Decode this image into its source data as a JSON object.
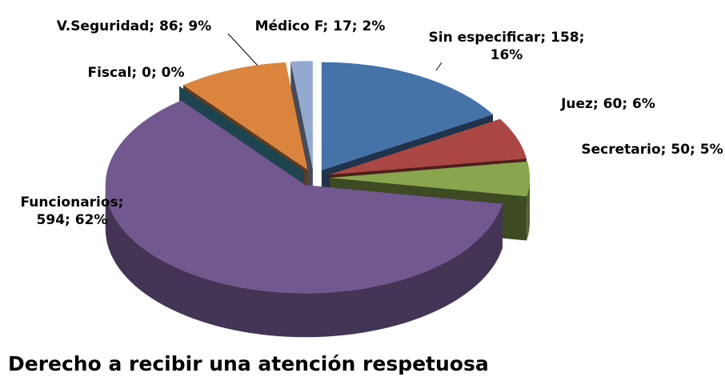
{
  "chart_data": {
    "type": "pie3d",
    "title": "Derecho a recibir una atención respetuosa",
    "values": [
      158,
      60,
      50,
      594,
      0,
      86,
      17
    ],
    "value_labels": [
      "Sin especificar; 158; 16%",
      "Juez; 60; 6%",
      "Secretario; 50; 5%",
      "Funcionarios; 594; 62%",
      "Fiscal; 0; 0%",
      "V.Seguridad; 86; 9%",
      "Médico F; 17; 2%"
    ],
    "colors": [
      "#4572a7",
      "#aa4643",
      "#89a54e",
      "#71588f",
      "#4198af",
      "#db843d",
      "#93a9cf"
    ]
  }
}
